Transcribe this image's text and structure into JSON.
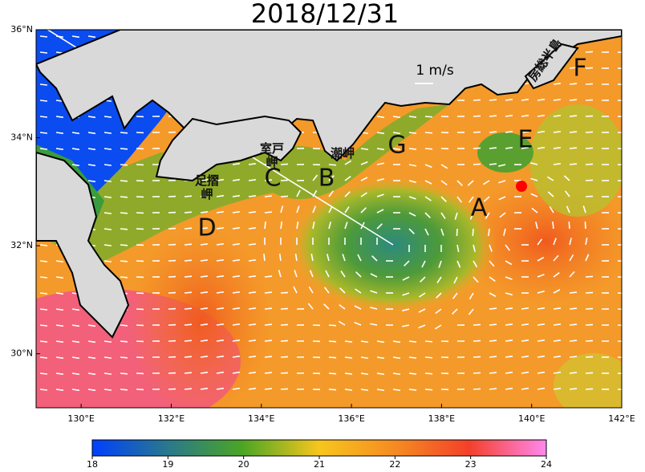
{
  "title": "2018/12/31",
  "map": {
    "xlim": [
      129,
      142
    ],
    "ylim": [
      29,
      36
    ],
    "lat_ticks": [
      {
        "value": 36,
        "label": "36°N"
      },
      {
        "value": 34,
        "label": "34°N"
      },
      {
        "value": 32,
        "label": "32°N"
      },
      {
        "value": 30,
        "label": "30°N"
      }
    ],
    "lon_ticks": [
      {
        "value": 130,
        "label": "130°E"
      },
      {
        "value": 132,
        "label": "132°E"
      },
      {
        "value": 134,
        "label": "134°E"
      },
      {
        "value": 136,
        "label": "136°E"
      },
      {
        "value": 138,
        "label": "138°E"
      },
      {
        "value": 140,
        "label": "140°E"
      },
      {
        "value": 142,
        "label": "142°E"
      }
    ]
  },
  "scale_label": "1 m/s",
  "region_labels": [
    "A",
    "B",
    "C",
    "D",
    "E",
    "F",
    "G"
  ],
  "place_names": [
    "室戸岬",
    "足摺岬",
    "潮岬",
    "房総半島"
  ],
  "colorbar": {
    "lim": [
      18,
      24
    ],
    "ticks": [
      18,
      19,
      20,
      21,
      22,
      23,
      24
    ]
  }
}
